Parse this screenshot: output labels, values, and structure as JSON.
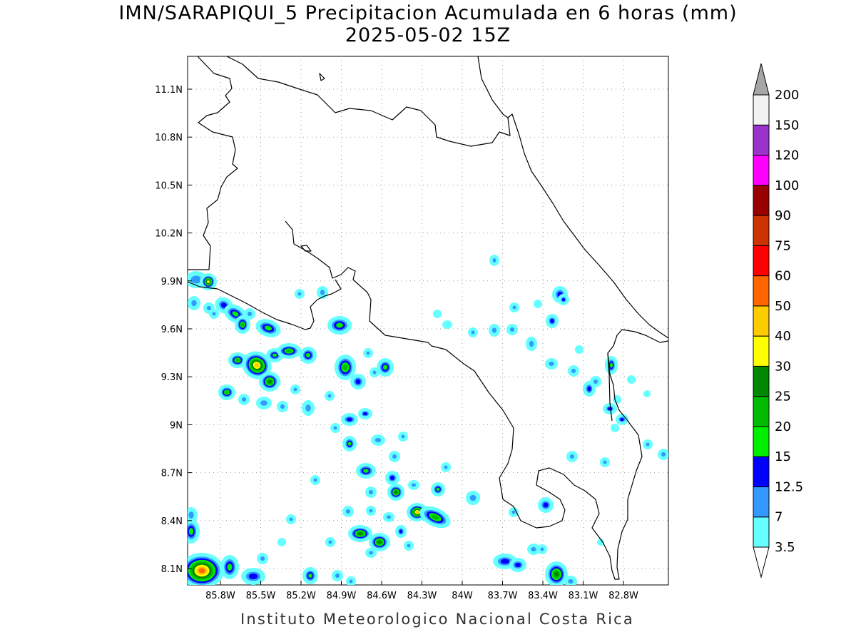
{
  "title": "IMN/SARAPIQUI_5 Precipitacion Acumulada en 6 horas (mm)",
  "subtitle": "2025-05-02 15Z",
  "footer": "Instituto Meteorologico Nacional Costa Rica",
  "map": {
    "lon_range": [
      -86.0,
      -83.0
    ],
    "lat_range": [
      8.0,
      11.2
    ],
    "lon_ticks": [
      "85.8W",
      "85.5W",
      "85.2W",
      "84.9W",
      "84.6W",
      "84.3W",
      "84W",
      "83.7W",
      "83.4W",
      "83.1W",
      "82.8W"
    ],
    "lat_ticks": [
      "8.1N",
      "8.4N",
      "8.7N",
      "9N",
      "9.3N",
      "9.6N",
      "9.9N",
      "10.2N",
      "10.5N",
      "10.8N",
      "11.1N"
    ],
    "grid": "dotted"
  },
  "colorbar": {
    "labels": [
      "3.5",
      "7",
      "12.5",
      "15",
      "20",
      "25",
      "30",
      "40",
      "50",
      "60",
      "75",
      "90",
      "100",
      "120",
      "150",
      "200"
    ],
    "colors": [
      "#66ffff",
      "#3399ff",
      "#0000ff",
      "#00ee00",
      "#00bb00",
      "#008800",
      "#ffff00",
      "#ffcc00",
      "#ff6600",
      "#ff0000",
      "#cc3300",
      "#990000",
      "#ff00ff",
      "#9933cc",
      "#f2f2f2",
      "#a6a6a6"
    ]
  }
}
